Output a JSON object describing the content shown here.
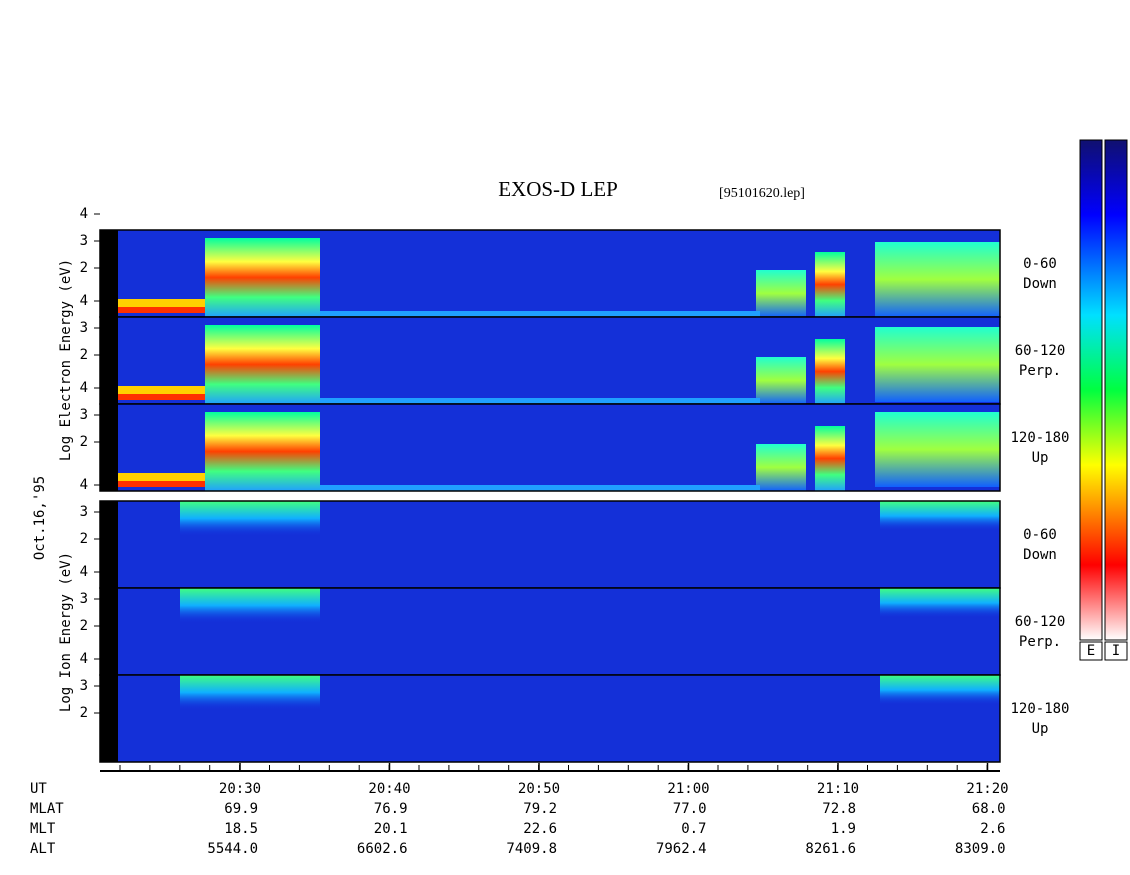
{
  "header": {
    "title": "EXOS-D LEP",
    "file": "[95101620.lep]"
  },
  "left_labels": {
    "electron": "Log Electron Energy (eV)",
    "date": "Oct.16,'95",
    "ion": "Log Ion Energy (eV)"
  },
  "energy_ticks": [
    4,
    3,
    2
  ],
  "electron_panels": [
    {
      "angle": "0-60",
      "dir": "Down"
    },
    {
      "angle": "60-120",
      "dir": "Perp."
    },
    {
      "angle": "120-180",
      "dir": "Up"
    }
  ],
  "ion_panels": [
    {
      "angle": "0-60",
      "dir": "Down"
    },
    {
      "angle": "60-120",
      "dir": "Perp."
    },
    {
      "angle": "120-180",
      "dir": "Up"
    }
  ],
  "colorbars": [
    "E",
    "I"
  ],
  "axis_table": {
    "rows": [
      {
        "label": "UT",
        "values": [
          "20:30",
          "20:40",
          "20:50",
          "21:00",
          "21:10",
          "21:20"
        ]
      },
      {
        "label": "MLAT",
        "values": [
          "69.9",
          "76.9",
          "79.2",
          "77.0",
          "72.8",
          "68.0"
        ]
      },
      {
        "label": "MLT",
        "values": [
          "18.5",
          "20.1",
          "22.6",
          "0.7",
          "1.9",
          "2.6"
        ]
      },
      {
        "label": "ALT",
        "values": [
          "5544.0",
          "6602.6",
          "7409.8",
          "7962.4",
          "8261.6",
          "8309.0"
        ]
      }
    ]
  }
}
